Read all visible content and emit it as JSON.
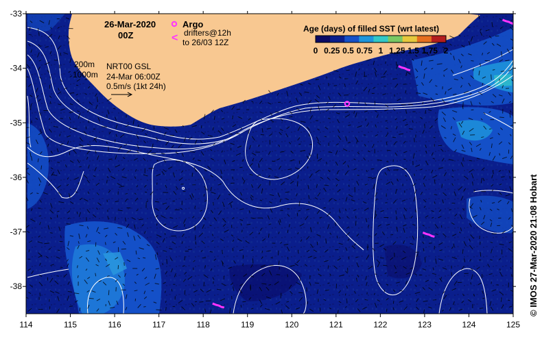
{
  "map": {
    "lon_range": [
      114,
      125
    ],
    "lat_range": [
      -38.5,
      -33
    ],
    "x_ticks": [
      "114",
      "115",
      "116",
      "117",
      "118",
      "119",
      "120",
      "121",
      "122",
      "123",
      "124",
      "125"
    ],
    "y_ticks": [
      "-33",
      "-34",
      "-35",
      "-36",
      "-37",
      "-38"
    ],
    "ocean_color": "#0a1e8c",
    "land_color": "#f8c891",
    "contour_color": "#ffffff"
  },
  "header": {
    "date": "26-Mar-2020",
    "time": "00Z",
    "argo_label": "Argo",
    "drifter_symbol": "<",
    "drifter_label": "drifters@12h",
    "drifter_range": "to 26/03 12Z"
  },
  "isobaths": {
    "shallow": "200m",
    "deep": "1000m"
  },
  "product": {
    "name": "NRT00 GSL",
    "valid": "24-Mar 06:00Z",
    "scale": "0.5m/s (1kt 24h)"
  },
  "legend": {
    "title": "Age (days) of filled SST (wrt latest)",
    "ticks": [
      "0",
      "0.25",
      "0.5",
      "0.75",
      "1",
      "1.25",
      "1.5",
      "1.75",
      "2"
    ],
    "colors": [
      "#0a0a64",
      "#0a1e8c",
      "#1450c8",
      "#1e96dc",
      "#32c8c8",
      "#78c864",
      "#e6c83c",
      "#e66e1e",
      "#b41e1e"
    ]
  },
  "credit": "© IMOS 27-Mar-2020 21:08 Hobart",
  "argo_floats": [
    {
      "lon": 121.25,
      "lat": -34.65
    },
    {
      "lon": 117.55,
      "lat": -36.2
    }
  ],
  "drifters": [
    {
      "lon": 123.1,
      "lat": -37.05
    },
    {
      "lon": 118.35,
      "lat": -38.35
    },
    {
      "lon": 122.55,
      "lat": -34.0
    },
    {
      "lon": 124.9,
      "lat": -33.15
    }
  ]
}
